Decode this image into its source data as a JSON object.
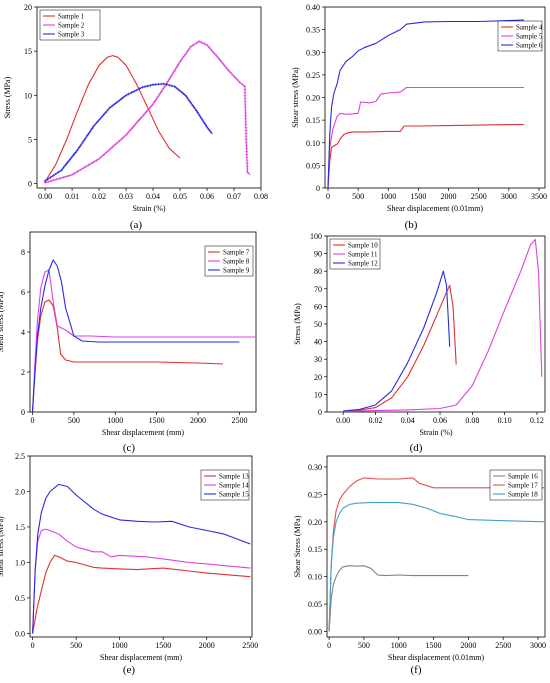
{
  "chart_data": [
    {
      "type": "line",
      "panel_label": "(a)",
      "xlabel": "Strain (%)",
      "ylabel": "Stress (MPa)",
      "xlim": [
        -0.003,
        0.08
      ],
      "ylim": [
        -0.5,
        20
      ],
      "xticks": [
        0.0,
        0.01,
        0.02,
        0.03,
        0.04,
        0.05,
        0.06,
        0.07,
        0.08
      ],
      "xtick_labels": [
        "0.00",
        "0.01",
        "0.02",
        "0.03",
        "0.04",
        "0.05",
        "0.06",
        "0.07",
        "0.08"
      ],
      "yticks": [
        0,
        5,
        10,
        15,
        20
      ],
      "ytick_labels": [
        "0",
        "5",
        "10",
        "15",
        "20"
      ],
      "legend_position": "top-left",
      "series": [
        {
          "name": "Sample 1",
          "color": "#e03030",
          "marker": "none",
          "x": [
            0.0,
            0.004,
            0.008,
            0.012,
            0.016,
            0.02,
            0.023,
            0.025,
            0.027,
            0.03,
            0.034,
            0.038,
            0.042,
            0.046,
            0.05
          ],
          "y": [
            0.2,
            2.2,
            5.0,
            8.2,
            11.2,
            13.4,
            14.3,
            14.5,
            14.3,
            13.4,
            11.2,
            8.6,
            6.0,
            4.0,
            2.9
          ]
        },
        {
          "name": "Sample 2",
          "color": "#e040e0",
          "marker": "plus",
          "x": [
            0.0,
            0.01,
            0.02,
            0.03,
            0.04,
            0.045,
            0.05,
            0.054,
            0.057,
            0.06,
            0.064,
            0.068,
            0.072,
            0.074,
            0.0745,
            0.075,
            0.076
          ],
          "y": [
            0.1,
            1.0,
            2.8,
            5.5,
            9.0,
            11.3,
            13.8,
            15.5,
            16.1,
            15.7,
            14.3,
            12.8,
            11.5,
            11.0,
            5.0,
            1.3,
            1.0
          ]
        },
        {
          "name": "Sample 3",
          "color": "#2a2ae0",
          "marker": "plus",
          "x": [
            0.0,
            0.006,
            0.012,
            0.018,
            0.024,
            0.03,
            0.036,
            0.04,
            0.044,
            0.048,
            0.052,
            0.056,
            0.06,
            0.062
          ],
          "y": [
            0.3,
            1.5,
            3.8,
            6.5,
            8.6,
            10.0,
            10.9,
            11.2,
            11.3,
            11.0,
            10.0,
            8.3,
            6.4,
            5.6
          ]
        }
      ]
    },
    {
      "type": "line",
      "panel_label": "(b)",
      "xlabel": "Shear displacement (0.01mm)",
      "ylabel": "Shear stress (MPa)",
      "xlim": [
        -50,
        3600
      ],
      "ylim": [
        0,
        0.4
      ],
      "xticks": [
        0,
        500,
        1000,
        1500,
        2000,
        2500,
        3000,
        3500
      ],
      "xtick_labels": [
        "0",
        "500",
        "1000",
        "1500",
        "2000",
        "2500",
        "3000",
        "3500"
      ],
      "yticks": [
        0,
        0.05,
        0.1,
        0.15,
        0.2,
        0.25,
        0.3,
        0.35,
        0.4
      ],
      "ytick_labels": [
        "0",
        "0.05",
        "0.10",
        "0.15",
        "0.20",
        "0.25",
        "0.30",
        "0.35",
        "0.40"
      ],
      "legend_position": "top-right",
      "series": [
        {
          "name": "Sample 4",
          "color": "#e03030",
          "marker": "none",
          "x": [
            0,
            30,
            60,
            100,
            160,
            200,
            260,
            330,
            420,
            700,
            1000,
            1200,
            1260,
            1500,
            2000,
            2500,
            3000,
            3250
          ],
          "y": [
            0,
            0.06,
            0.09,
            0.093,
            0.098,
            0.108,
            0.118,
            0.122,
            0.124,
            0.124,
            0.125,
            0.125,
            0.137,
            0.137,
            0.138,
            0.139,
            0.14,
            0.14
          ]
        },
        {
          "name": "Sample 5",
          "color": "#e040e0",
          "marker": "none",
          "x": [
            0,
            30,
            80,
            150,
            200,
            280,
            350,
            500,
            540,
            700,
            800,
            880,
            1000,
            1200,
            1300,
            1600,
            2000,
            2500,
            3000,
            3250
          ],
          "y": [
            0,
            0.09,
            0.13,
            0.158,
            0.165,
            0.163,
            0.163,
            0.165,
            0.19,
            0.188,
            0.192,
            0.208,
            0.21,
            0.212,
            0.222,
            0.222,
            0.222,
            0.222,
            0.222,
            0.222
          ]
        },
        {
          "name": "Sample 6",
          "color": "#2a2ae0",
          "marker": "none",
          "x": [
            0,
            30,
            60,
            100,
            150,
            200,
            300,
            400,
            500,
            600,
            800,
            1000,
            1200,
            1300,
            1600,
            2000,
            2500,
            3000,
            3250
          ],
          "y": [
            0,
            0.12,
            0.18,
            0.21,
            0.23,
            0.26,
            0.28,
            0.29,
            0.303,
            0.31,
            0.32,
            0.337,
            0.35,
            0.362,
            0.367,
            0.368,
            0.368,
            0.37,
            0.371
          ]
        }
      ]
    },
    {
      "type": "line",
      "panel_label": "(c)",
      "xlabel": "Shear displacement (mm)",
      "ylabel": "Shear stress (MPa)",
      "xlim": [
        -30,
        2700
      ],
      "ylim": [
        0,
        9
      ],
      "xticks": [
        0,
        500,
        1000,
        1500,
        2000,
        2500
      ],
      "xtick_labels": [
        "0",
        "500",
        "1000",
        "1500",
        "2000",
        "2500"
      ],
      "yticks": [
        0,
        2,
        4,
        6,
        8
      ],
      "ytick_labels": [
        "0",
        "2",
        "4",
        "6",
        "8"
      ],
      "legend_position": "top-right",
      "series": [
        {
          "name": "Sample 7",
          "color": "#e03030",
          "marker": "none",
          "x": [
            0,
            30,
            60,
            100,
            150,
            200,
            250,
            300,
            340,
            400,
            500,
            1000,
            1500,
            2000,
            2300
          ],
          "y": [
            0,
            2.0,
            3.6,
            4.8,
            5.5,
            5.6,
            5.3,
            4.2,
            2.9,
            2.6,
            2.5,
            2.5,
            2.5,
            2.45,
            2.4
          ]
        },
        {
          "name": "Sample 8",
          "color": "#e040e0",
          "marker": "none",
          "x": [
            0,
            30,
            60,
            100,
            150,
            200,
            250,
            300,
            400,
            500,
            700,
            1000,
            1500,
            2000,
            2700
          ],
          "y": [
            0,
            2.5,
            4.6,
            6.2,
            7.0,
            7.1,
            5.5,
            4.3,
            4.1,
            3.8,
            3.8,
            3.75,
            3.75,
            3.75,
            3.75
          ]
        },
        {
          "name": "Sample 9",
          "color": "#2a2ae0",
          "marker": "none",
          "x": [
            0,
            30,
            60,
            100,
            150,
            200,
            250,
            300,
            350,
            400,
            500,
            600,
            800,
            1000,
            1500,
            2000,
            2500
          ],
          "y": [
            0,
            2.0,
            3.8,
            5.2,
            6.3,
            7.1,
            7.6,
            7.3,
            6.5,
            5.2,
            3.8,
            3.55,
            3.5,
            3.5,
            3.5,
            3.5,
            3.5
          ]
        }
      ]
    },
    {
      "type": "line",
      "panel_label": "(d)",
      "xlabel": "Strain (%)",
      "ylabel": "Stress (MPa)",
      "xlim": [
        -0.01,
        0.125
      ],
      "ylim": [
        0,
        100
      ],
      "xticks": [
        0.0,
        0.02,
        0.04,
        0.06,
        0.08,
        0.1,
        0.12
      ],
      "xtick_labels": [
        "0.00",
        "0.02",
        "0.04",
        "0.06",
        "0.08",
        "0.10",
        "0.12"
      ],
      "yticks": [
        0,
        10,
        20,
        30,
        40,
        50,
        60,
        70,
        80,
        90,
        100
      ],
      "ytick_labels": [
        "0",
        "10",
        "20",
        "30",
        "40",
        "50",
        "60",
        "70",
        "80",
        "90",
        "100"
      ],
      "legend_position": "top-left",
      "series": [
        {
          "name": "Sample 10",
          "color": "#e03030",
          "marker": "none",
          "x": [
            0.0,
            0.01,
            0.02,
            0.03,
            0.04,
            0.05,
            0.058,
            0.064,
            0.066,
            0.068,
            0.07
          ],
          "y": [
            0.5,
            1.0,
            2.5,
            8.0,
            20.0,
            38.0,
            55.0,
            68.0,
            72.0,
            60.0,
            27.0
          ]
        },
        {
          "name": "Sample 11",
          "color": "#e040e0",
          "marker": "none",
          "x": [
            0.0,
            0.02,
            0.04,
            0.06,
            0.07,
            0.08,
            0.09,
            0.1,
            0.11,
            0.116,
            0.119,
            0.121,
            0.123
          ],
          "y": [
            0.3,
            0.8,
            1.2,
            2.0,
            4.0,
            15.0,
            35.0,
            58.0,
            80.0,
            95.0,
            98.0,
            80.0,
            20.0
          ]
        },
        {
          "name": "Sample 12",
          "color": "#2a2ae0",
          "marker": "none",
          "x": [
            0.0,
            0.01,
            0.02,
            0.03,
            0.04,
            0.05,
            0.058,
            0.062,
            0.064,
            0.065,
            0.066
          ],
          "y": [
            0.5,
            1.5,
            4.0,
            12.0,
            28.0,
            48.0,
            68.0,
            80.0,
            72.0,
            55.0,
            37.0
          ]
        }
      ]
    },
    {
      "type": "line",
      "panel_label": "(e)",
      "xlabel": "Shear displacement (mm)",
      "ylabel": "Shear stress (MPa)",
      "xlim": [
        -30,
        2520
      ],
      "ylim": [
        -0.05,
        2.5
      ],
      "xticks": [
        0,
        500,
        1000,
        1500,
        2000,
        2500
      ],
      "xtick_labels": [
        "0",
        "500",
        "1000",
        "1500",
        "2000",
        "2500"
      ],
      "yticks": [
        0,
        0.5,
        1.0,
        1.5,
        2.0,
        2.5
      ],
      "ytick_labels": [
        "0.0",
        "0.5",
        "1.0",
        "1.5",
        "2.0",
        "2.5"
      ],
      "legend_position": "top-right",
      "series": [
        {
          "name": "Sample 13",
          "color": "#e03030",
          "marker": "none",
          "x": [
            0,
            50,
            100,
            150,
            200,
            250,
            300,
            400,
            500,
            700,
            800,
            1000,
            1200,
            1500,
            1800,
            2000,
            2500
          ],
          "y": [
            0,
            0.35,
            0.6,
            0.85,
            1.0,
            1.1,
            1.08,
            1.02,
            1.0,
            0.93,
            0.92,
            0.91,
            0.9,
            0.92,
            0.88,
            0.85,
            0.8
          ]
        },
        {
          "name": "Sample 14",
          "color": "#e040e0",
          "marker": "none",
          "x": [
            0,
            30,
            60,
            100,
            150,
            200,
            300,
            400,
            500,
            700,
            800,
            900,
            1000,
            1300,
            1500,
            1800,
            2000,
            2500
          ],
          "y": [
            0,
            0.9,
            1.3,
            1.45,
            1.47,
            1.45,
            1.4,
            1.3,
            1.22,
            1.15,
            1.15,
            1.08,
            1.1,
            1.08,
            1.05,
            1.0,
            0.98,
            0.92
          ]
        },
        {
          "name": "Sample 15",
          "color": "#2a2ae0",
          "marker": "none",
          "x": [
            0,
            30,
            60,
            100,
            150,
            200,
            300,
            400,
            500,
            600,
            700,
            800,
            1000,
            1200,
            1400,
            1600,
            1800,
            2000,
            2200,
            2500
          ],
          "y": [
            0,
            0.9,
            1.4,
            1.7,
            1.9,
            2.0,
            2.1,
            2.07,
            1.95,
            1.85,
            1.75,
            1.68,
            1.6,
            1.58,
            1.57,
            1.58,
            1.5,
            1.45,
            1.4,
            1.26
          ]
        }
      ]
    },
    {
      "type": "line",
      "panel_label": "(f)",
      "xlabel": "Shear displacement (0.01mm)",
      "ylabel": "Shear Stress (MPa)",
      "xlim": [
        -30,
        3100
      ],
      "ylim": [
        -0.01,
        0.32
      ],
      "xticks": [
        0,
        500,
        1000,
        1500,
        2000,
        2500,
        3000
      ],
      "xtick_labels": [
        "0",
        "500",
        "1000",
        "1500",
        "2000",
        "2500",
        "3000"
      ],
      "yticks": [
        0,
        0.05,
        0.1,
        0.15,
        0.2,
        0.25,
        0.3
      ],
      "ytick_labels": [
        "0.00",
        "0.05",
        "0.10",
        "0.15",
        "0.20",
        "0.25",
        "0.30"
      ],
      "legend_position": "top-right",
      "series": [
        {
          "name": "Sample 16",
          "color": "#808080",
          "marker": "none",
          "x": [
            0,
            30,
            60,
            100,
            150,
            200,
            300,
            400,
            500,
            600,
            700,
            800,
            1000,
            1200,
            1500,
            1800,
            2000
          ],
          "y": [
            0,
            0.06,
            0.085,
            0.1,
            0.112,
            0.118,
            0.12,
            0.119,
            0.12,
            0.115,
            0.103,
            0.102,
            0.103,
            0.102,
            0.102,
            0.102,
            0.102
          ]
        },
        {
          "name": "Sample 17",
          "color": "#e05050",
          "marker": "none",
          "x": [
            0,
            30,
            60,
            100,
            150,
            200,
            300,
            400,
            500,
            700,
            1000,
            1200,
            1300,
            1500,
            2000,
            2500,
            3100
          ],
          "y": [
            0,
            0.12,
            0.18,
            0.22,
            0.24,
            0.25,
            0.265,
            0.275,
            0.28,
            0.278,
            0.278,
            0.28,
            0.27,
            0.262,
            0.262,
            0.262,
            0.262
          ]
        },
        {
          "name": "Sample 18",
          "color": "#40a0d0",
          "marker": "none",
          "x": [
            0,
            30,
            60,
            100,
            150,
            200,
            300,
            400,
            600,
            1000,
            1200,
            1400,
            1600,
            1800,
            2000,
            2500,
            3100
          ],
          "y": [
            0,
            0.12,
            0.17,
            0.2,
            0.215,
            0.225,
            0.232,
            0.234,
            0.235,
            0.235,
            0.232,
            0.225,
            0.215,
            0.21,
            0.204,
            0.202,
            0.2
          ]
        }
      ]
    }
  ]
}
